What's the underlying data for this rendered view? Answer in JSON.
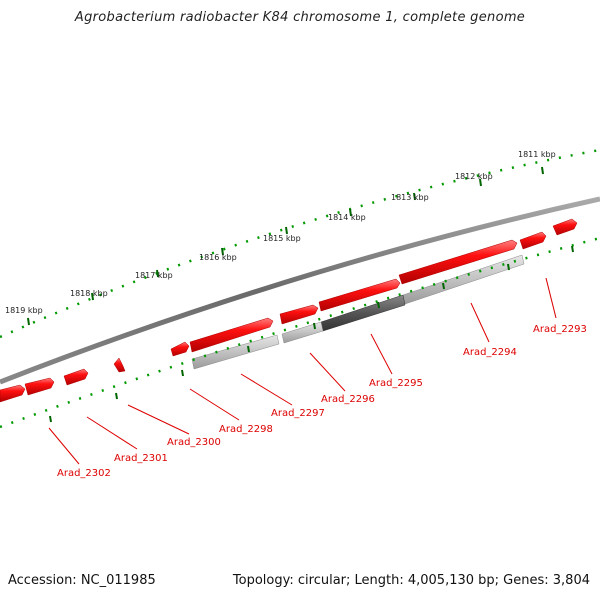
{
  "title": "Agrobacterium radiobacter K84 chromosome 1, complete genome",
  "accession": "Accession: NC_011985",
  "summary": "Topology: circular; Length: 4,005,130 bp; Genes: 3,804",
  "colors": {
    "gene_forward": "#e8000a",
    "gene_other": "#e8000a",
    "pseudogene": "#b0b0b0",
    "highlight": "#555555",
    "backbone": "#777777",
    "tick": "#006600",
    "label": "#dd0000"
  },
  "kbp_ticks": [
    "1811 kbp",
    "1812 kbp",
    "1813 kbp",
    "1814 kbp",
    "1815 kbp",
    "1816 kbp",
    "1817 kbp",
    "1818 kbp",
    "1819 kbp"
  ],
  "gene_labels": [
    "Arad_2293",
    "Arad_2294",
    "Arad_2295",
    "Arad_2296",
    "Arad_2297",
    "Arad_2298",
    "Arad_2300",
    "Arad_2301",
    "Arad_2302"
  ]
}
